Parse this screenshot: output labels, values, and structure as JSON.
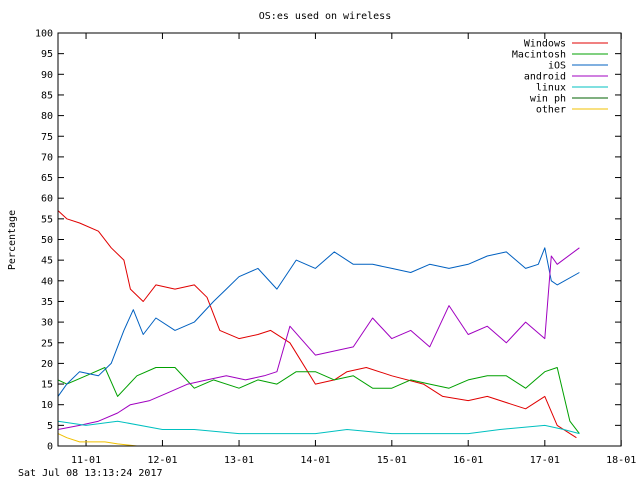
{
  "footer": {
    "timestamp": "Sat Jul 08 13:13:24 2017"
  },
  "chart_data": {
    "type": "line",
    "title": "OS:es used on wireless",
    "xlabel": "",
    "ylabel": "Percentage",
    "xlim": [
      "2010-08-20",
      "2017-12-31"
    ],
    "ylim": [
      0,
      100
    ],
    "yticks": [
      0,
      5,
      10,
      15,
      20,
      25,
      30,
      35,
      40,
      45,
      50,
      55,
      60,
      65,
      70,
      75,
      80,
      85,
      90,
      95,
      100
    ],
    "xticks": [
      {
        "date": "2011-01-01",
        "label": "11-01"
      },
      {
        "date": "2012-01-01",
        "label": "12-01"
      },
      {
        "date": "2013-01-01",
        "label": "13-01"
      },
      {
        "date": "2014-01-01",
        "label": "14-01"
      },
      {
        "date": "2015-01-01",
        "label": "15-01"
      },
      {
        "date": "2016-01-01",
        "label": "16-01"
      },
      {
        "date": "2017-01-01",
        "label": "17-01"
      },
      {
        "date": "2018-01-01",
        "label": "18-01"
      }
    ],
    "legend_position": "top-right",
    "grid": false,
    "series": [
      {
        "name": "Windows",
        "color": "#e00000",
        "x": [
          "2010-08-20",
          "2010-10-01",
          "2010-12-01",
          "2011-03-01",
          "2011-05-01",
          "2011-07-01",
          "2011-08-01",
          "2011-10-01",
          "2011-12-01",
          "2012-03-01",
          "2012-06-01",
          "2012-08-01",
          "2012-10-01",
          "2013-01-01",
          "2013-04-01",
          "2013-06-01",
          "2013-09-01",
          "2014-01-01",
          "2014-04-01",
          "2014-06-01",
          "2014-09-01",
          "2015-01-01",
          "2015-06-01",
          "2015-09-01",
          "2016-01-01",
          "2016-04-01",
          "2016-08-01",
          "2016-10-01",
          "2017-01-01",
          "2017-03-01",
          "2017-06-01"
        ],
        "values": [
          57,
          55,
          54,
          52,
          48,
          45,
          38,
          35,
          39,
          38,
          39,
          36,
          28,
          26,
          27,
          28,
          25,
          15,
          16,
          18,
          19,
          17,
          15,
          12,
          11,
          12,
          10,
          9,
          12,
          5,
          2
        ]
      },
      {
        "name": "Macintosh",
        "color": "#00a000",
        "x": [
          "2010-08-20",
          "2010-10-01",
          "2011-01-01",
          "2011-04-01",
          "2011-06-01",
          "2011-09-01",
          "2011-12-01",
          "2012-03-01",
          "2012-06-01",
          "2012-09-01",
          "2013-01-01",
          "2013-04-01",
          "2013-07-01",
          "2013-10-01",
          "2014-01-01",
          "2014-04-01",
          "2014-07-01",
          "2014-10-01",
          "2015-01-01",
          "2015-04-01",
          "2015-07-01",
          "2015-10-01",
          "2016-01-01",
          "2016-04-01",
          "2016-07-01",
          "2016-10-01",
          "2017-01-01",
          "2017-03-01",
          "2017-05-01",
          "2017-06-15"
        ],
        "values": [
          16,
          15,
          17,
          19,
          12,
          17,
          19,
          19,
          14,
          16,
          14,
          16,
          15,
          18,
          18,
          16,
          17,
          14,
          14,
          16,
          15,
          14,
          16,
          17,
          17,
          14,
          18,
          19,
          6,
          3
        ]
      },
      {
        "name": "iOS",
        "color": "#0060c0",
        "x": [
          "2010-08-20",
          "2010-10-01",
          "2010-12-01",
          "2011-03-01",
          "2011-05-01",
          "2011-07-01",
          "2011-08-15",
          "2011-10-01",
          "2011-12-01",
          "2012-03-01",
          "2012-06-01",
          "2012-09-01",
          "2012-11-01",
          "2013-01-01",
          "2013-04-01",
          "2013-07-01",
          "2013-10-01",
          "2014-01-01",
          "2014-04-01",
          "2014-07-01",
          "2014-10-01",
          "2015-01-01",
          "2015-04-01",
          "2015-07-01",
          "2015-10-01",
          "2016-01-01",
          "2016-04-01",
          "2016-07-01",
          "2016-10-01",
          "2016-12-01",
          "2017-01-01",
          "2017-02-01",
          "2017-03-01",
          "2017-06-15"
        ],
        "values": [
          12,
          15,
          18,
          17,
          20,
          28,
          33,
          27,
          31,
          28,
          30,
          35,
          38,
          41,
          43,
          38,
          45,
          43,
          47,
          44,
          44,
          43,
          42,
          44,
          43,
          44,
          46,
          47,
          43,
          44,
          48,
          40,
          39,
          42
        ]
      },
      {
        "name": "android",
        "color": "#a000c0",
        "x": [
          "2010-08-20",
          "2010-12-01",
          "2011-03-01",
          "2011-06-01",
          "2011-08-01",
          "2011-11-01",
          "2012-02-01",
          "2012-05-01",
          "2012-08-01",
          "2012-11-01",
          "2013-02-01",
          "2013-05-01",
          "2013-07-01",
          "2013-09-01",
          "2014-01-01",
          "2014-04-01",
          "2014-07-01",
          "2014-10-01",
          "2015-01-01",
          "2015-04-01",
          "2015-07-01",
          "2015-10-01",
          "2016-01-01",
          "2016-04-01",
          "2016-07-01",
          "2016-10-01",
          "2017-01-01",
          "2017-02-01",
          "2017-03-01",
          "2017-06-15"
        ],
        "values": [
          4,
          5,
          6,
          8,
          10,
          11,
          13,
          15,
          16,
          17,
          16,
          17,
          18,
          29,
          22,
          23,
          24,
          31,
          26,
          28,
          24,
          34,
          27,
          29,
          25,
          30,
          26,
          46,
          44,
          48
        ]
      },
      {
        "name": "linux",
        "color": "#00c0c0",
        "x": [
          "2010-08-20",
          "2011-01-01",
          "2011-06-01",
          "2012-01-01",
          "2012-06-01",
          "2013-01-01",
          "2013-06-01",
          "2014-01-01",
          "2014-06-01",
          "2015-01-01",
          "2015-06-01",
          "2016-01-01",
          "2016-06-01",
          "2017-01-01",
          "2017-04-01",
          "2017-06-15"
        ],
        "values": [
          6,
          5,
          6,
          4,
          4,
          3,
          3,
          3,
          4,
          3,
          3,
          3,
          4,
          5,
          4,
          3
        ]
      },
      {
        "name": "win ph",
        "color": "#006000",
        "x": [
          "2010-08-20",
          "2017-06-15"
        ],
        "values": [
          0,
          0
        ]
      },
      {
        "name": "other",
        "color": "#f0c000",
        "x": [
          "2010-08-20",
          "2010-10-01",
          "2010-12-01",
          "2011-02-01",
          "2011-04-01",
          "2011-06-01",
          "2011-09-01",
          "2011-12-01"
        ],
        "values": [
          3,
          2,
          1,
          1,
          1,
          0.5,
          0,
          0
        ]
      }
    ]
  }
}
